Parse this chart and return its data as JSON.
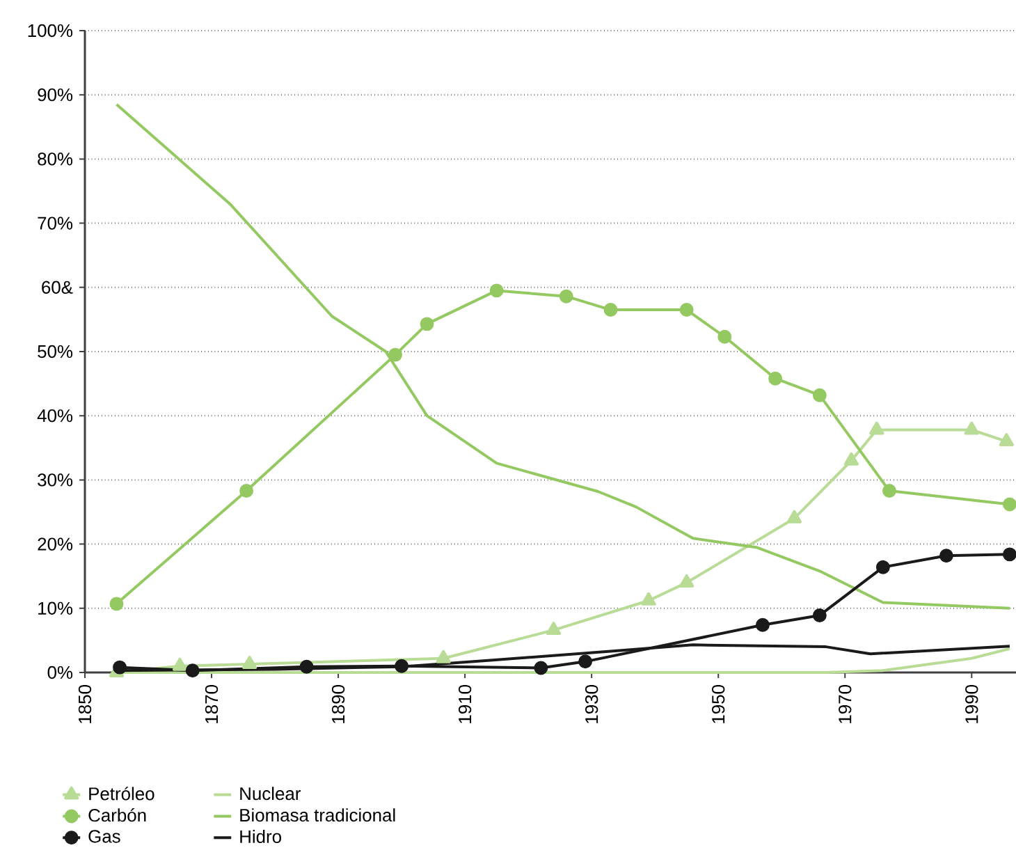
{
  "chart_data": {
    "type": "line",
    "xlim": [
      1850,
      1997
    ],
    "ylim": [
      0,
      100
    ],
    "xticks": [
      1850,
      1870,
      1890,
      1910,
      1930,
      1950,
      1970,
      1990
    ],
    "yticks": [
      {
        "value": 0,
        "label": "0%"
      },
      {
        "value": 10,
        "label": "10%"
      },
      {
        "value": 20,
        "label": "20%"
      },
      {
        "value": 30,
        "label": "30%"
      },
      {
        "value": 40,
        "label": "40%"
      },
      {
        "value": 50,
        "label": "50%"
      },
      {
        "value": 60,
        "label": "60&"
      },
      {
        "value": 70,
        "label": "70%"
      },
      {
        "value": 80,
        "label": "80%"
      },
      {
        "value": 90,
        "label": "90%"
      },
      {
        "value": 100,
        "label": "100%"
      }
    ],
    "grid": "y",
    "legend": "bottom",
    "line_style": "solid",
    "series": [
      {
        "name": "Petróleo",
        "color": "#b8db96",
        "marker": "triangle",
        "x": [
          1855,
          1865,
          1876,
          1906.6,
          1924,
          1939,
          1945,
          1962,
          1971,
          1975,
          1990,
          1995.5
        ],
        "values": [
          0,
          1.0,
          1.3,
          2.2,
          6.6,
          11.2,
          14,
          24,
          33,
          37.8,
          37.8,
          36
        ]
      },
      {
        "name": "Carbón",
        "color": "#94c962",
        "marker": "circle",
        "x": [
          1855,
          1875.5,
          1899,
          1904,
          1915,
          1926,
          1933,
          1945,
          1951,
          1959,
          1966,
          1977,
          1996
        ],
        "values": [
          10.7,
          28.3,
          49.5,
          54.3,
          59.5,
          58.6,
          56.5,
          56.5,
          52.3,
          45.8,
          43.2,
          28.3,
          26.2
        ]
      },
      {
        "name": "Gas",
        "color": "#1a1a1a",
        "marker": "circle",
        "x": [
          1855.5,
          1867,
          1885,
          1900,
          1922,
          1929,
          1957,
          1966,
          1976,
          1986,
          1996
        ],
        "values": [
          0.8,
          0.3,
          0.9,
          1.0,
          0.7,
          1.7,
          7.4,
          8.9,
          16.4,
          18.2,
          18.4
        ]
      },
      {
        "name": "Nuclear",
        "color": "#b8db96",
        "marker": "none",
        "x": [
          1855,
          1967,
          1976,
          1990,
          1996
        ],
        "values": [
          0,
          0,
          0.3,
          2.2,
          3.7
        ]
      },
      {
        "name": "Biomasa tradicional",
        "color": "#94c962",
        "marker": "none",
        "x": [
          1855,
          1873,
          1889,
          1897.5,
          1904,
          1915,
          1931,
          1937,
          1946,
          1956,
          1966,
          1976,
          1996
        ],
        "values": [
          88.5,
          72.9,
          55.5,
          50,
          40,
          32.6,
          28.2,
          25.8,
          20.9,
          19.5,
          15.8,
          10.9,
          10.0
        ]
      },
      {
        "name": "Hidro",
        "color": "#1a1a1a",
        "marker": "none",
        "x": [
          1855,
          1880,
          1900,
          1914,
          1933,
          1946,
          1967,
          1974,
          1996
        ],
        "values": [
          0.3,
          0.5,
          0.9,
          1.9,
          3.3,
          4.3,
          4.0,
          2.9,
          4.1
        ]
      }
    ]
  }
}
